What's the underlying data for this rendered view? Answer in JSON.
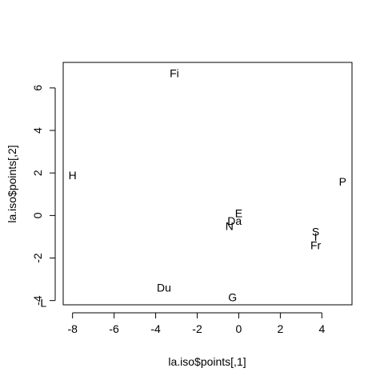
{
  "chart_data": {
    "type": "scatter",
    "title": "",
    "xlabel": "la.iso$points[,1]",
    "ylabel": "la.iso$points[,2]",
    "xlim": [
      -8.45,
      5.45
    ],
    "ylim": [
      -4.2,
      7.2
    ],
    "xticks": [
      -8,
      -6,
      -4,
      -2,
      0,
      2,
      4
    ],
    "yticks": [
      -4,
      -2,
      0,
      2,
      4,
      6
    ],
    "grid": false,
    "legend": "none",
    "points": [
      {
        "label": "H",
        "x": -8.0,
        "y": 1.9
      },
      {
        "label": "Fi",
        "x": -3.1,
        "y": 6.7
      },
      {
        "label": "P",
        "x": 5.0,
        "y": 1.6
      },
      {
        "label": "E",
        "x": 0.0,
        "y": 0.1
      },
      {
        "label": "Da",
        "x": -0.2,
        "y": -0.25
      },
      {
        "label": "N",
        "x": -0.45,
        "y": -0.5
      },
      {
        "label": "S",
        "x": 3.7,
        "y": -0.75
      },
      {
        "label": "I",
        "x": 3.7,
        "y": -1.0
      },
      {
        "label": "Fr",
        "x": 3.7,
        "y": -1.4
      },
      {
        "label": "Du",
        "x": -3.6,
        "y": -3.4
      },
      {
        "label": "G",
        "x": -0.3,
        "y": -3.85
      },
      {
        "label": "L",
        "x": -9.4,
        "y": -4.1
      }
    ]
  }
}
